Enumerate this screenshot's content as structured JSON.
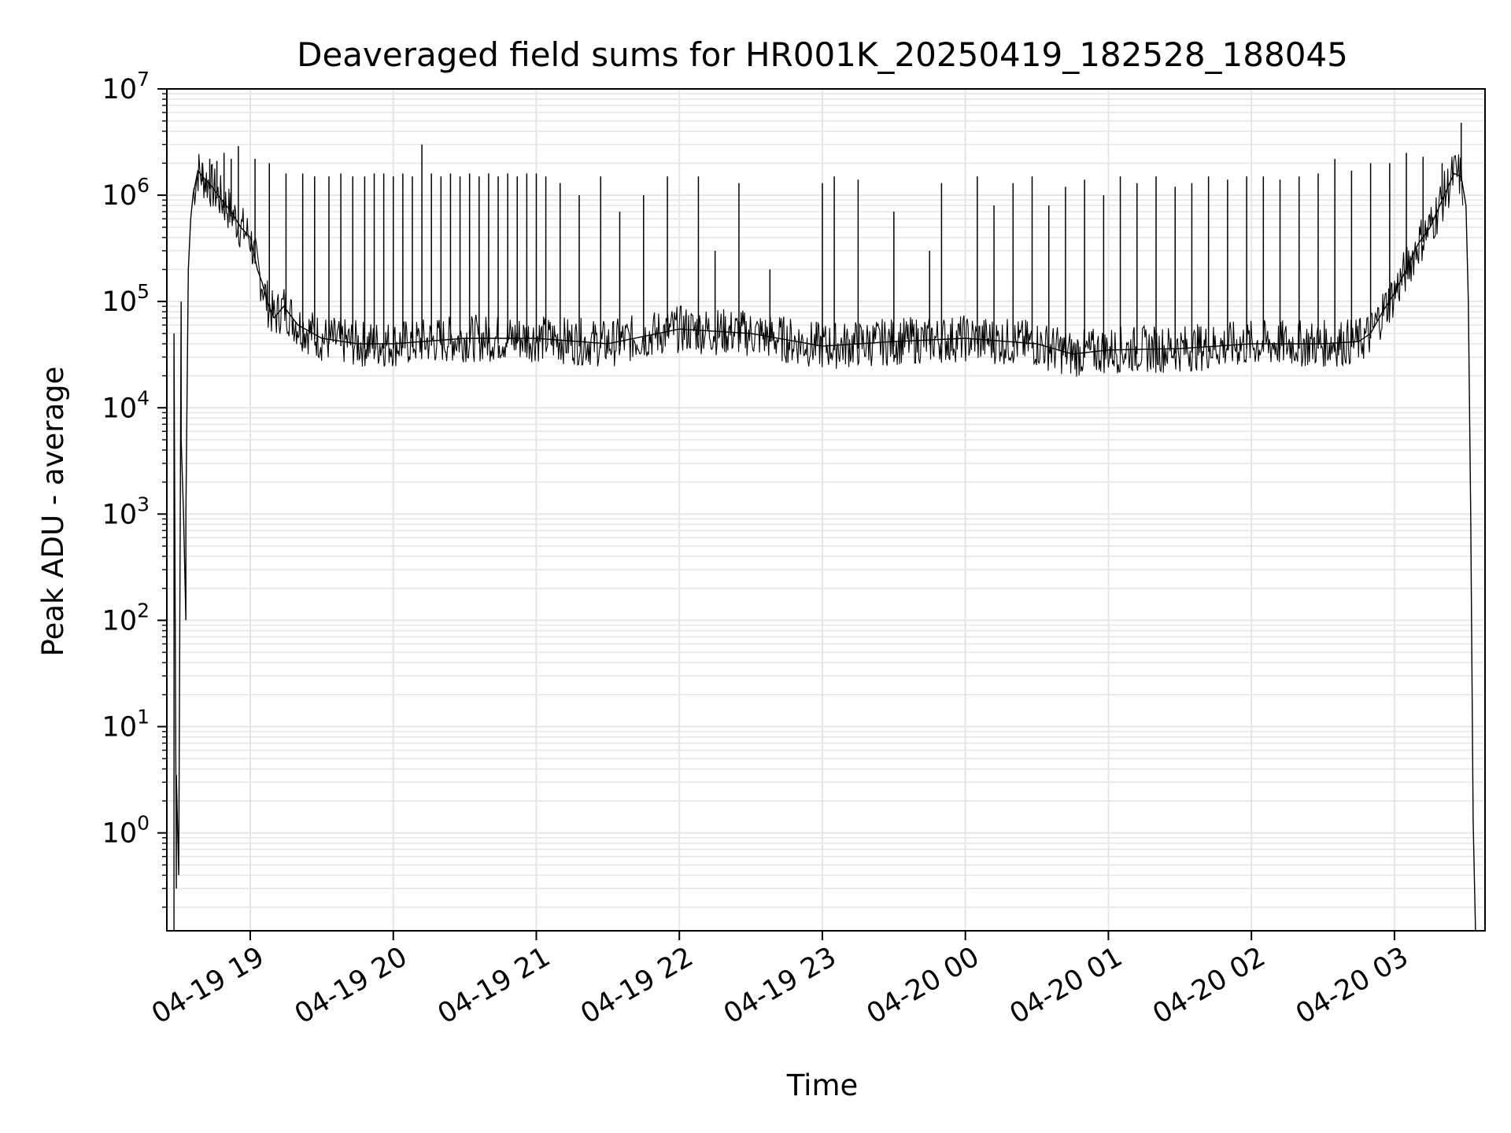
{
  "chart_data": {
    "type": "line",
    "title": "Deaveraged field sums for HR001K_20250419_182528_188045",
    "xlabel": "Time",
    "ylabel": "Peak ADU - average",
    "x_scale": "time",
    "y_scale": "log",
    "xlim": [
      "2025-04-19 18:25",
      "2025-04-20 03:38"
    ],
    "ylim": [
      0.12,
      10000000
    ],
    "x_ticks": [
      {
        "t": "2025-04-19 19:00",
        "label": "04-19 19"
      },
      {
        "t": "2025-04-19 20:00",
        "label": "04-19 20"
      },
      {
        "t": "2025-04-19 21:00",
        "label": "04-19 21"
      },
      {
        "t": "2025-04-19 22:00",
        "label": "04-19 22"
      },
      {
        "t": "2025-04-19 23:00",
        "label": "04-19 23"
      },
      {
        "t": "2025-04-20 00:00",
        "label": "04-20 00"
      },
      {
        "t": "2025-04-20 01:00",
        "label": "04-20 01"
      },
      {
        "t": "2025-04-20 02:00",
        "label": "04-20 02"
      },
      {
        "t": "2025-04-20 03:00",
        "label": "04-20 03"
      }
    ],
    "y_ticks": [
      {
        "value": 1,
        "base": "10",
        "exp": "0"
      },
      {
        "value": 10,
        "base": "10",
        "exp": "1"
      },
      {
        "value": 100,
        "base": "10",
        "exp": "2"
      },
      {
        "value": 1000,
        "base": "10",
        "exp": "3"
      },
      {
        "value": 10000,
        "base": "10",
        "exp": "4"
      },
      {
        "value": 100000,
        "base": "10",
        "exp": "5"
      },
      {
        "value": 1000000,
        "base": "10",
        "exp": "6"
      },
      {
        "value": 10000000,
        "base": "10",
        "exp": "7"
      }
    ],
    "grid": true,
    "minor_grid": true,
    "line_color": "#000000",
    "grid_color": "#e6e6e6",
    "series": [
      {
        "x": [
          "2025-04-19 18:28",
          "2025-04-19 18:28",
          "2025-04-19 18:29",
          "2025-04-19 18:29",
          "2025-04-19 18:30",
          "2025-04-19 18:31",
          "2025-04-19 18:31",
          "2025-04-19 18:32",
          "2025-04-19 18:33",
          "2025-04-19 18:33",
          "2025-04-19 18:34",
          "2025-04-19 18:35",
          "2025-04-19 18:36",
          "2025-04-19 18:38",
          "2025-04-19 18:40",
          "2025-04-19 18:44",
          "2025-04-19 18:48",
          "2025-04-19 18:52",
          "2025-04-19 18:56",
          "2025-04-19 19:00",
          "2025-04-19 19:03",
          "2025-04-19 19:05",
          "2025-04-19 19:07",
          "2025-04-19 19:10",
          "2025-04-19 19:14",
          "2025-04-19 19:20",
          "2025-04-19 19:30",
          "2025-04-19 19:45",
          "2025-04-19 20:00",
          "2025-04-19 20:30",
          "2025-04-19 21:00",
          "2025-04-19 21:30",
          "2025-04-19 22:00",
          "2025-04-19 22:30",
          "2025-04-19 23:00",
          "2025-04-19 23:30",
          "2025-04-20 00:00",
          "2025-04-20 00:30",
          "2025-04-20 00:45",
          "2025-04-20 01:00",
          "2025-04-20 01:30",
          "2025-04-20 02:00",
          "2025-04-20 02:30",
          "2025-04-20 02:45",
          "2025-04-20 02:50",
          "2025-04-20 02:55",
          "2025-04-20 03:00",
          "2025-04-20 03:05",
          "2025-04-20 03:10",
          "2025-04-20 03:15",
          "2025-04-20 03:20",
          "2025-04-20 03:25",
          "2025-04-20 03:28",
          "2025-04-20 03:30",
          "2025-04-20 03:31",
          "2025-04-20 03:32",
          "2025-04-20 03:33",
          "2025-04-20 03:34"
        ],
        "y": [
          0.12,
          50000,
          0.3,
          3.5,
          0.4,
          100000,
          5000,
          1000,
          100,
          1000,
          200000,
          600000,
          1000000,
          1700000,
          1500000,
          1200000,
          900000,
          700000,
          500000,
          400000,
          200000,
          150000,
          100000,
          70000,
          90000,
          60000,
          45000,
          40000,
          40000,
          45000,
          45000,
          40000,
          55000,
          50000,
          38000,
          42000,
          45000,
          40000,
          32000,
          35000,
          36000,
          40000,
          40000,
          42000,
          50000,
          80000,
          120000,
          200000,
          350000,
          500000,
          900000,
          1600000,
          1500000,
          800000,
          100000,
          1000,
          1.3,
          0.12
        ]
      }
    ],
    "spikes": [
      {
        "x": "2025-04-19 18:40",
        "y": 2000000
      },
      {
        "x": "2025-04-19 18:43",
        "y": 2200000
      },
      {
        "x": "2025-04-19 18:46",
        "y": 2100000
      },
      {
        "x": "2025-04-19 18:49",
        "y": 2500000
      },
      {
        "x": "2025-04-19 18:52",
        "y": 2200000
      },
      {
        "x": "2025-04-19 18:55",
        "y": 2900000
      },
      {
        "x": "2025-04-19 19:02",
        "y": 2200000
      },
      {
        "x": "2025-04-19 19:08",
        "y": 2000000
      },
      {
        "x": "2025-04-19 19:15",
        "y": 1600000
      },
      {
        "x": "2025-04-19 19:22",
        "y": 1600000
      },
      {
        "x": "2025-04-19 19:27",
        "y": 1500000
      },
      {
        "x": "2025-04-19 19:33",
        "y": 1500000
      },
      {
        "x": "2025-04-19 19:38",
        "y": 1600000
      },
      {
        "x": "2025-04-19 19:43",
        "y": 1500000
      },
      {
        "x": "2025-04-19 19:48",
        "y": 1500000
      },
      {
        "x": "2025-04-19 19:52",
        "y": 1600000
      },
      {
        "x": "2025-04-19 19:56",
        "y": 1600000
      },
      {
        "x": "2025-04-19 20:00",
        "y": 1500000
      },
      {
        "x": "2025-04-19 20:04",
        "y": 1600000
      },
      {
        "x": "2025-04-19 20:08",
        "y": 1500000
      },
      {
        "x": "2025-04-19 20:12",
        "y": 3000000
      },
      {
        "x": "2025-04-19 20:16",
        "y": 1600000
      },
      {
        "x": "2025-04-19 20:20",
        "y": 1500000
      },
      {
        "x": "2025-04-19 20:24",
        "y": 1600000
      },
      {
        "x": "2025-04-19 20:28",
        "y": 1500000
      },
      {
        "x": "2025-04-19 20:32",
        "y": 1600000
      },
      {
        "x": "2025-04-19 20:36",
        "y": 1500000
      },
      {
        "x": "2025-04-19 20:40",
        "y": 1600000
      },
      {
        "x": "2025-04-19 20:44",
        "y": 1500000
      },
      {
        "x": "2025-04-19 20:48",
        "y": 1600000
      },
      {
        "x": "2025-04-19 20:52",
        "y": 1500000
      },
      {
        "x": "2025-04-19 20:56",
        "y": 1600000
      },
      {
        "x": "2025-04-19 21:00",
        "y": 1600000
      },
      {
        "x": "2025-04-19 21:04",
        "y": 1500000
      },
      {
        "x": "2025-04-19 21:10",
        "y": 1300000
      },
      {
        "x": "2025-04-19 21:18",
        "y": 1000000
      },
      {
        "x": "2025-04-19 21:27",
        "y": 1500000
      },
      {
        "x": "2025-04-19 21:35",
        "y": 700000
      },
      {
        "x": "2025-04-19 21:45",
        "y": 1000000
      },
      {
        "x": "2025-04-19 21:55",
        "y": 1500000
      },
      {
        "x": "2025-04-19 22:08",
        "y": 1500000
      },
      {
        "x": "2025-04-19 22:15",
        "y": 300000
      },
      {
        "x": "2025-04-19 22:25",
        "y": 1300000
      },
      {
        "x": "2025-04-19 22:38",
        "y": 200000
      },
      {
        "x": "2025-04-19 23:00",
        "y": 1300000
      },
      {
        "x": "2025-04-19 23:05",
        "y": 1500000
      },
      {
        "x": "2025-04-19 23:15",
        "y": 1400000
      },
      {
        "x": "2025-04-19 23:30",
        "y": 700000
      },
      {
        "x": "2025-04-19 23:45",
        "y": 300000
      },
      {
        "x": "2025-04-19 23:50",
        "y": 1300000
      },
      {
        "x": "2025-04-20 00:05",
        "y": 1500000
      },
      {
        "x": "2025-04-20 00:12",
        "y": 800000
      },
      {
        "x": "2025-04-20 00:20",
        "y": 1300000
      },
      {
        "x": "2025-04-20 00:28",
        "y": 1500000
      },
      {
        "x": "2025-04-20 00:35",
        "y": 800000
      },
      {
        "x": "2025-04-20 00:42",
        "y": 1200000
      },
      {
        "x": "2025-04-20 00:50",
        "y": 1400000
      },
      {
        "x": "2025-04-20 00:58",
        "y": 1000000
      },
      {
        "x": "2025-04-20 01:05",
        "y": 1500000
      },
      {
        "x": "2025-04-20 01:12",
        "y": 1300000
      },
      {
        "x": "2025-04-20 01:20",
        "y": 1500000
      },
      {
        "x": "2025-04-20 01:28",
        "y": 1200000
      },
      {
        "x": "2025-04-20 01:35",
        "y": 1300000
      },
      {
        "x": "2025-04-20 01:42",
        "y": 1500000
      },
      {
        "x": "2025-04-20 01:50",
        "y": 1400000
      },
      {
        "x": "2025-04-20 01:58",
        "y": 1500000
      },
      {
        "x": "2025-04-20 02:05",
        "y": 1500000
      },
      {
        "x": "2025-04-20 02:12",
        "y": 1400000
      },
      {
        "x": "2025-04-20 02:20",
        "y": 1500000
      },
      {
        "x": "2025-04-20 02:28",
        "y": 1600000
      },
      {
        "x": "2025-04-20 02:35",
        "y": 2200000
      },
      {
        "x": "2025-04-20 02:42",
        "y": 1700000
      },
      {
        "x": "2025-04-20 02:50",
        "y": 2000000
      },
      {
        "x": "2025-04-20 02:58",
        "y": 2000000
      },
      {
        "x": "2025-04-20 03:05",
        "y": 2500000
      },
      {
        "x": "2025-04-20 03:12",
        "y": 2300000
      },
      {
        "x": "2025-04-20 03:20",
        "y": 2000000
      },
      {
        "x": "2025-04-20 03:28",
        "y": 4800000
      }
    ]
  }
}
